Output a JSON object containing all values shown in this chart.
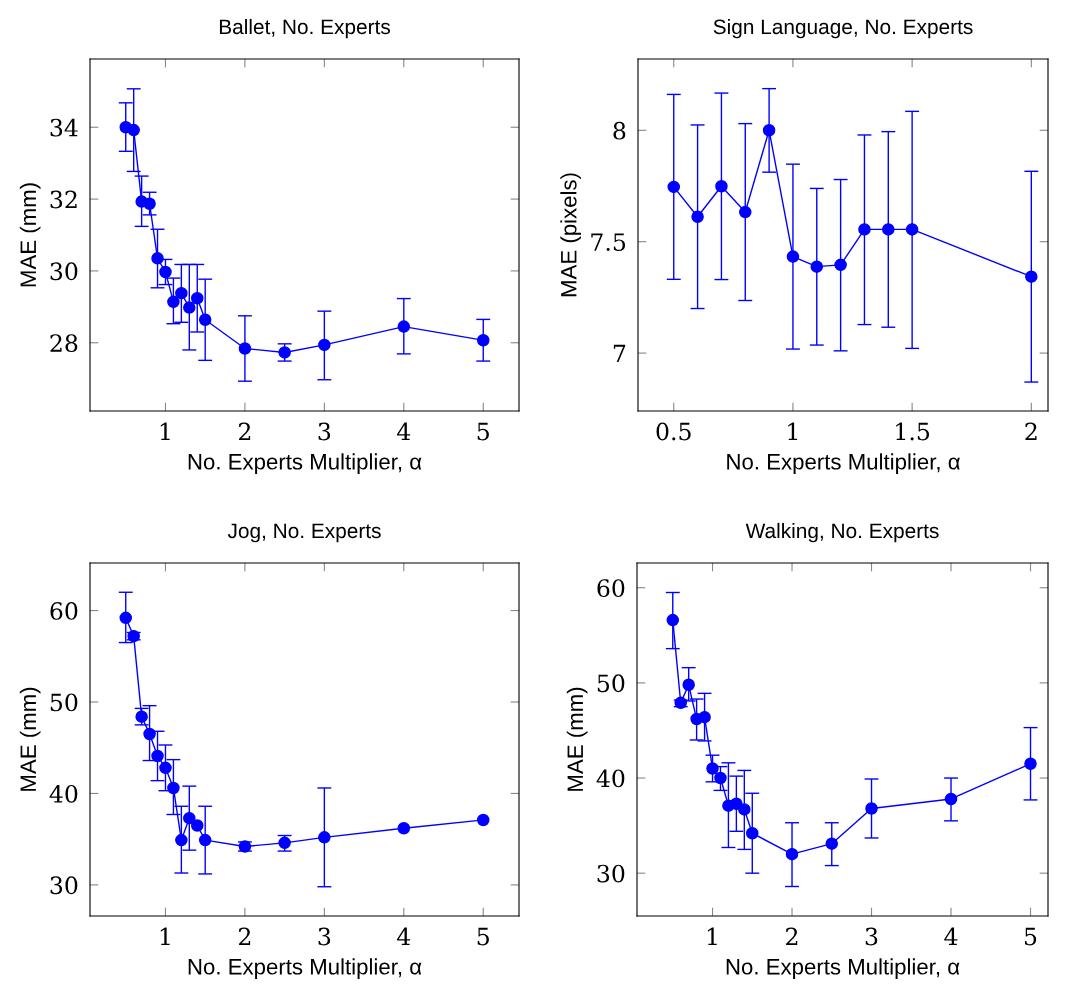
{
  "chart_data": [
    {
      "type": "line",
      "title": "Ballet, No. Experts",
      "xlabel": "No. Experts Multiplier, α",
      "ylabel": "MAE (mm)",
      "marker": "circle",
      "grid": false,
      "x": [
        0.5,
        0.6,
        0.7,
        0.8,
        0.9,
        1.0,
        1.1,
        1.2,
        1.3,
        1.4,
        1.5,
        2,
        2.5,
        3,
        4,
        5
      ],
      "series": [
        {
          "color": "#0000ff",
          "values": [
            34.0,
            33.92,
            31.93,
            31.87,
            30.35,
            29.97,
            29.14,
            29.38,
            28.98,
            29.24,
            28.64,
            27.84,
            27.73,
            27.94,
            28.45,
            28.07
          ],
          "errors": [
            [
              33.33,
              34.68
            ],
            [
              32.77,
              35.07
            ],
            [
              31.24,
              32.64
            ],
            [
              31.56,
              32.19
            ],
            [
              29.53,
              31.16
            ],
            [
              29.62,
              30.32
            ],
            [
              28.53,
              29.8
            ],
            [
              28.57,
              30.18
            ],
            [
              27.8,
              30.18
            ],
            [
              28.3,
              30.18
            ],
            [
              27.51,
              29.77
            ],
            [
              26.93,
              28.75
            ],
            [
              27.49,
              27.97
            ],
            [
              26.97,
              28.88
            ],
            [
              27.69,
              29.23
            ],
            [
              27.49,
              28.65
            ]
          ]
        }
      ],
      "xlim": [
        0.05,
        5.45
      ],
      "ylim": [
        26.1,
        35.9
      ],
      "xticks": [
        1,
        2,
        3,
        4,
        5
      ],
      "yticks": [
        28,
        30,
        32,
        34
      ]
    },
    {
      "type": "line",
      "title": "Sign Language, No. Experts",
      "xlabel": "No. Experts Multiplier, α",
      "ylabel": "MAE (pixels)",
      "marker": "circle",
      "grid": false,
      "x": [
        0.5,
        0.6,
        0.7,
        0.8,
        0.9,
        1.0,
        1.1,
        1.2,
        1.3,
        1.4,
        1.5,
        2
      ],
      "series": [
        {
          "color": "#0000ff",
          "values": [
            7.746,
            7.612,
            7.749,
            7.633,
            8.0,
            7.433,
            7.388,
            7.396,
            7.555,
            7.555,
            7.555,
            7.343
          ],
          "errors": [
            [
              7.331,
              8.161
            ],
            [
              7.2,
              8.024
            ],
            [
              7.33,
              8.167
            ],
            [
              7.236,
              8.03
            ],
            [
              7.812,
              8.187
            ],
            [
              7.018,
              7.848
            ],
            [
              7.036,
              7.739
            ],
            [
              7.01,
              7.779
            ],
            [
              7.128,
              7.979
            ],
            [
              7.116,
              7.994
            ],
            [
              7.021,
              8.085
            ],
            [
              6.87,
              7.816
            ]
          ]
        }
      ],
      "xlim": [
        0.35,
        2.07
      ],
      "ylim": [
        6.74,
        8.32
      ],
      "xticks": [
        0.5,
        1,
        1.5,
        2
      ],
      "yticks": [
        7,
        7.5,
        8
      ]
    },
    {
      "type": "line",
      "title": "Jog, No. Experts",
      "xlabel": "No. Experts Multiplier, α",
      "ylabel": "MAE (mm)",
      "marker": "circle",
      "grid": false,
      "x": [
        0.5,
        0.6,
        0.7,
        0.8,
        0.9,
        1.0,
        1.1,
        1.2,
        1.3,
        1.4,
        1.5,
        2,
        2.5,
        3,
        4,
        5
      ],
      "series": [
        {
          "color": "#0000ff",
          "values": [
            59.2,
            57.2,
            48.4,
            46.5,
            44.1,
            42.8,
            40.6,
            34.9,
            37.3,
            36.5,
            34.9,
            34.2,
            34.6,
            35.2,
            36.2,
            37.1
          ],
          "errors": [
            [
              56.5,
              62.0
            ],
            [
              56.8,
              57.6
            ],
            [
              47.5,
              49.3
            ],
            [
              43.6,
              49.6
            ],
            [
              41.4,
              46.8
            ],
            [
              40.3,
              45.3
            ],
            [
              37.7,
              43.7
            ],
            [
              31.3,
              38.6
            ],
            [
              33.8,
              40.8
            ],
            null,
            [
              31.2,
              38.6
            ],
            [
              33.7,
              34.7
            ],
            [
              33.7,
              35.4
            ],
            [
              29.8,
              40.6
            ],
            null,
            null
          ]
        }
      ],
      "xlim": [
        0.05,
        5.45
      ],
      "ylim": [
        26.6,
        65.2
      ],
      "xticks": [
        1,
        2,
        3,
        4,
        5
      ],
      "yticks": [
        30,
        40,
        50,
        60
      ]
    },
    {
      "type": "line",
      "title": "Walking, No. Experts",
      "xlabel": "No. Experts Multiplier, α",
      "ylabel": "MAE (mm)",
      "marker": "circle",
      "grid": false,
      "x": [
        0.5,
        0.6,
        0.7,
        0.8,
        0.9,
        1.0,
        1.1,
        1.2,
        1.3,
        1.4,
        1.5,
        2,
        2.5,
        3,
        4,
        5
      ],
      "series": [
        {
          "color": "#0000ff",
          "values": [
            56.6,
            47.9,
            49.8,
            46.2,
            46.4,
            41.0,
            40.0,
            37.1,
            37.3,
            36.7,
            34.2,
            32.0,
            33.1,
            36.8,
            37.8,
            41.5
          ],
          "errors": [
            [
              53.6,
              59.5
            ],
            [
              47.5,
              48.2
            ],
            [
              48.1,
              51.6
            ],
            [
              44.0,
              48.3
            ],
            [
              43.9,
              48.9
            ],
            [
              39.6,
              42.4
            ],
            [
              38.7,
              41.2
            ],
            [
              32.7,
              41.6
            ],
            [
              34.4,
              40.2
            ],
            [
              32.5,
              40.8
            ],
            [
              30.0,
              38.4
            ],
            [
              28.6,
              35.3
            ],
            [
              30.8,
              35.3
            ],
            [
              33.7,
              39.9
            ],
            [
              35.5,
              40.0
            ],
            [
              37.7,
              45.3
            ]
          ]
        }
      ],
      "xlim": [
        0.05,
        5.22
      ],
      "ylim": [
        25.5,
        62.6
      ],
      "xticks": [
        1,
        2,
        3,
        4,
        5
      ],
      "yticks": [
        30,
        40,
        50,
        60
      ]
    }
  ]
}
